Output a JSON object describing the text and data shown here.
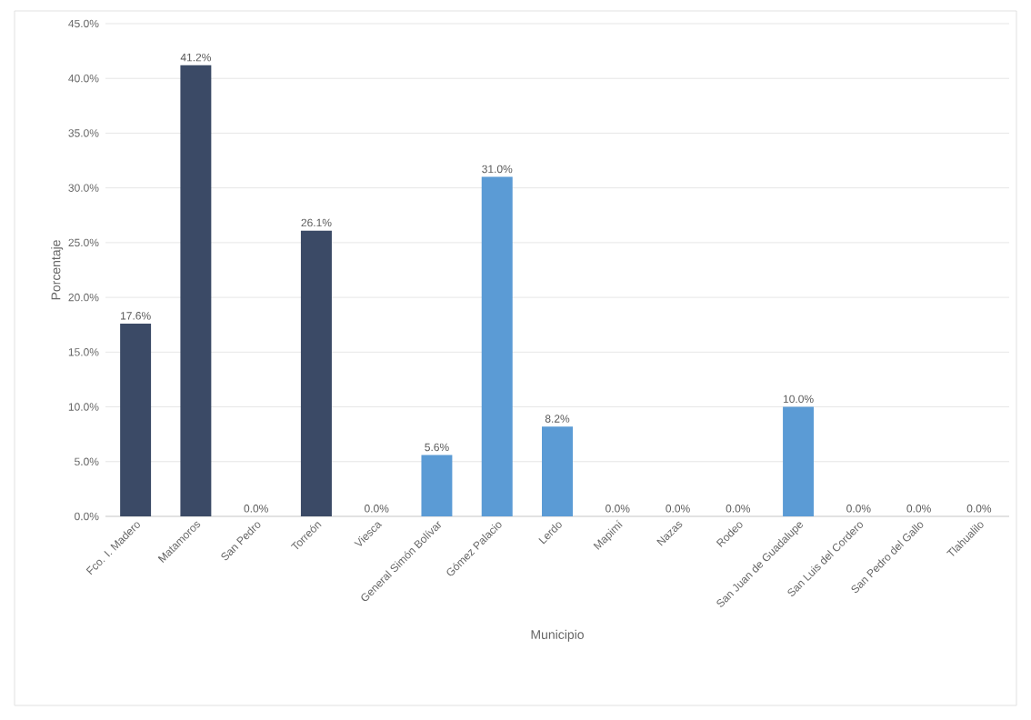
{
  "chart_data": {
    "type": "bar",
    "xlabel": "Municipio",
    "ylabel": "Porcentaje",
    "categories": [
      "Fco. I. Madero",
      "Matamoros",
      "San Pedro",
      "Torreón",
      "Viesca",
      "General Simón Bolívar",
      "Gómez Palacio",
      "Lerdo",
      "Mapimí",
      "Nazas",
      "Rodeo",
      "San Juan de Guadalupe",
      "San Luis del Cordero",
      "San Pedro del Gallo",
      "Tlahualilo"
    ],
    "values": [
      17.6,
      41.2,
      0,
      26.1,
      0,
      5.6,
      31.0,
      8.2,
      0,
      0,
      0,
      10.0,
      0,
      0,
      0
    ],
    "value_labels": [
      "17.6%",
      "41.2%",
      "0.0%",
      "26.1%",
      "0.0%",
      "5.6%",
      "31.0%",
      "8.2%",
      "0.0%",
      "0.0%",
      "0.0%",
      "10.0%",
      "0.0%",
      "0.0%",
      "0.0%"
    ],
    "colors": [
      "#3b4a66",
      "#3b4a66",
      "#3b4a66",
      "#3b4a66",
      "#3b4a66",
      "#5b9bd5",
      "#5b9bd5",
      "#5b9bd5",
      "#5b9bd5",
      "#5b9bd5",
      "#5b9bd5",
      "#5b9bd5",
      "#5b9bd5",
      "#5b9bd5",
      "#5b9bd5"
    ],
    "ylim": [
      0,
      45
    ],
    "yticks": [
      {
        "value": 0,
        "label": "0.0%"
      },
      {
        "value": 5,
        "label": "5.0%"
      },
      {
        "value": 10,
        "label": "10.0%"
      },
      {
        "value": 15,
        "label": "15.0%"
      },
      {
        "value": 20,
        "label": "20.0%"
      },
      {
        "value": 25,
        "label": "25.0%"
      },
      {
        "value": 30,
        "label": "30.0%"
      },
      {
        "value": 35,
        "label": "35.0%"
      },
      {
        "value": 40,
        "label": "40.0%"
      },
      {
        "value": 45,
        "label": "45.0%"
      }
    ],
    "grid": "y"
  }
}
